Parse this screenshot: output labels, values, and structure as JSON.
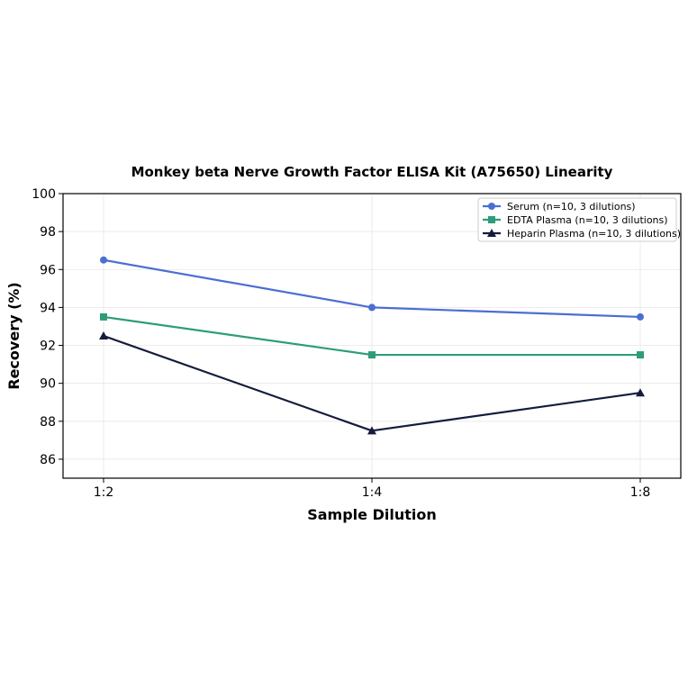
{
  "chart_data": {
    "type": "line",
    "title": "Monkey beta Nerve Growth Factor ELISA Kit (A75650) Linearity",
    "xlabel": "Sample Dilution",
    "ylabel": "Recovery (%)",
    "categories": [
      "1:2",
      "1:4",
      "1:8"
    ],
    "ylim": [
      85,
      100
    ],
    "yticks": [
      86,
      88,
      90,
      92,
      94,
      96,
      98,
      100
    ],
    "grid": true,
    "legend_position": "top-right",
    "series": [
      {
        "name": "Serum (n=10, 3 dilutions)",
        "values": [
          96.5,
          94.0,
          93.5
        ],
        "color": "#4a6fd4",
        "marker": "circle"
      },
      {
        "name": "EDTA Plasma (n=10, 3 dilutions)",
        "values": [
          93.5,
          91.5,
          91.5
        ],
        "color": "#2e9c7a",
        "marker": "square"
      },
      {
        "name": "Heparin Plasma (n=10, 3 dilutions)",
        "values": [
          92.5,
          87.5,
          89.5
        ],
        "color": "#141c3c",
        "marker": "triangle"
      }
    ]
  }
}
